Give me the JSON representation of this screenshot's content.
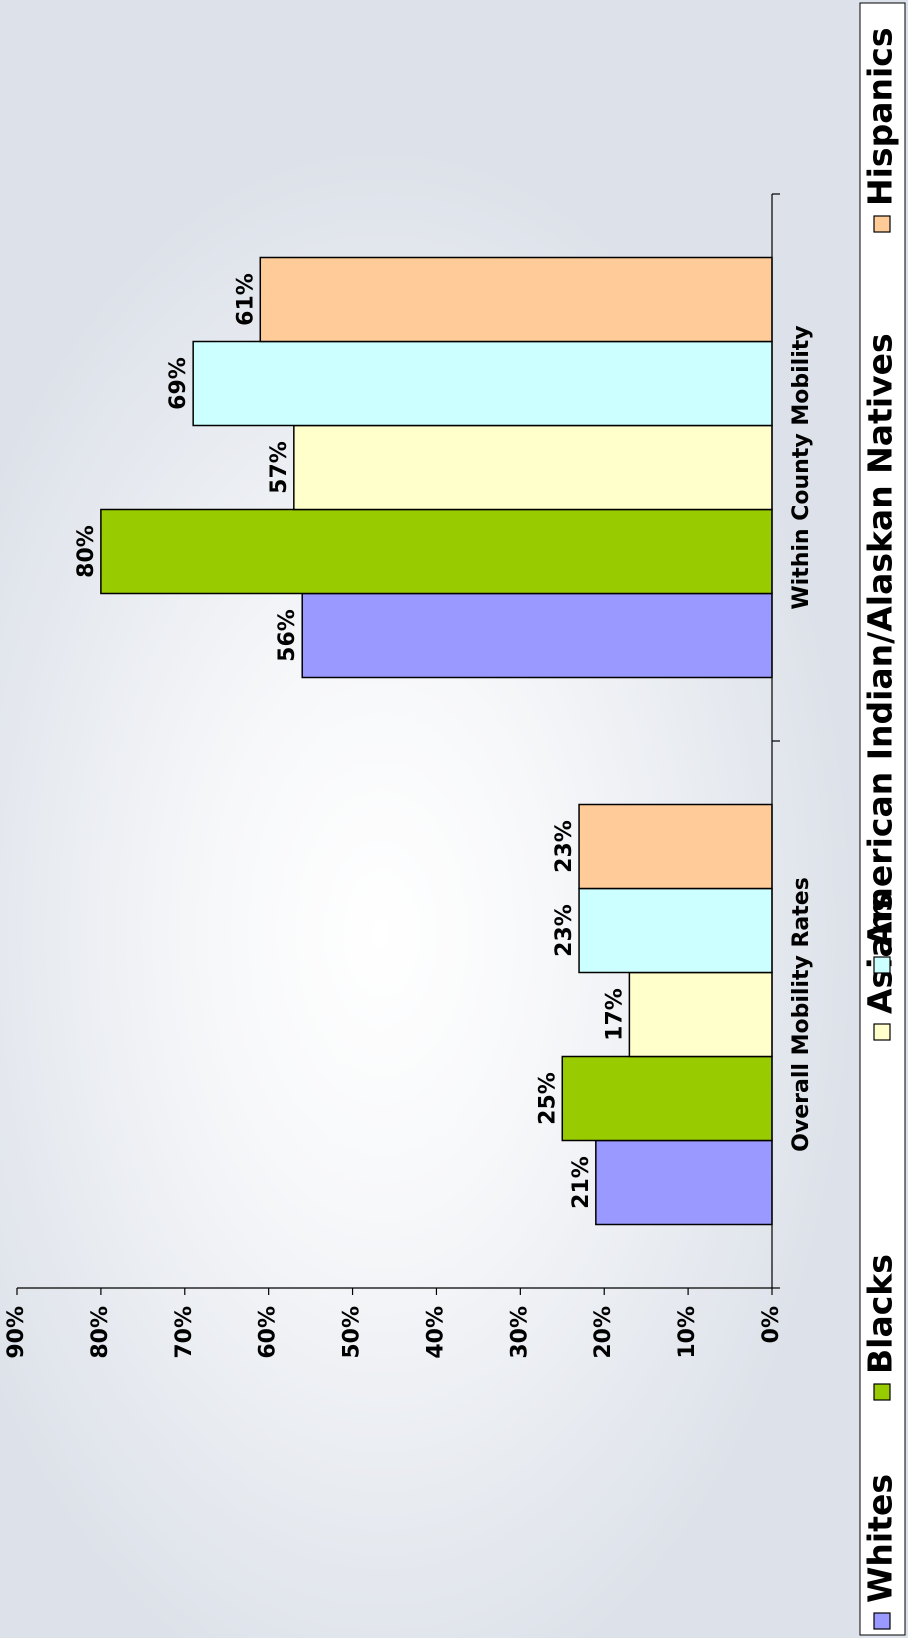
{
  "chart_data": {
    "type": "bar",
    "orientation": "rotated-90-ccw",
    "categories": [
      "Overall Mobility Rates",
      "Within County Mobility"
    ],
    "series": [
      {
        "name": "Whites",
        "color": "#9999ff",
        "values": [
          21,
          56
        ]
      },
      {
        "name": "Blacks",
        "color": "#99cc00",
        "values": [
          25,
          80
        ]
      },
      {
        "name": "Asians",
        "color": "#ffffcc",
        "values": [
          17,
          57
        ]
      },
      {
        "name": "American Indian/Alaskan Natives",
        "color": "#ccffff",
        "values": [
          23,
          69
        ]
      },
      {
        "name": "Hispanics",
        "color": "#ffcc99",
        "values": [
          23,
          61
        ]
      }
    ],
    "value_labels": [
      [
        "21%",
        "56%"
      ],
      [
        "25%",
        "80%"
      ],
      [
        "17%",
        "57%"
      ],
      [
        "23%",
        "69%"
      ],
      [
        "23%",
        "61%"
      ]
    ],
    "y_ticks": [
      "0%",
      "10%",
      "20%",
      "30%",
      "40%",
      "50%",
      "60%",
      "70%",
      "80%",
      "90%"
    ],
    "ylim": [
      0,
      90
    ],
    "grid": false,
    "legend_position": "bottom"
  }
}
